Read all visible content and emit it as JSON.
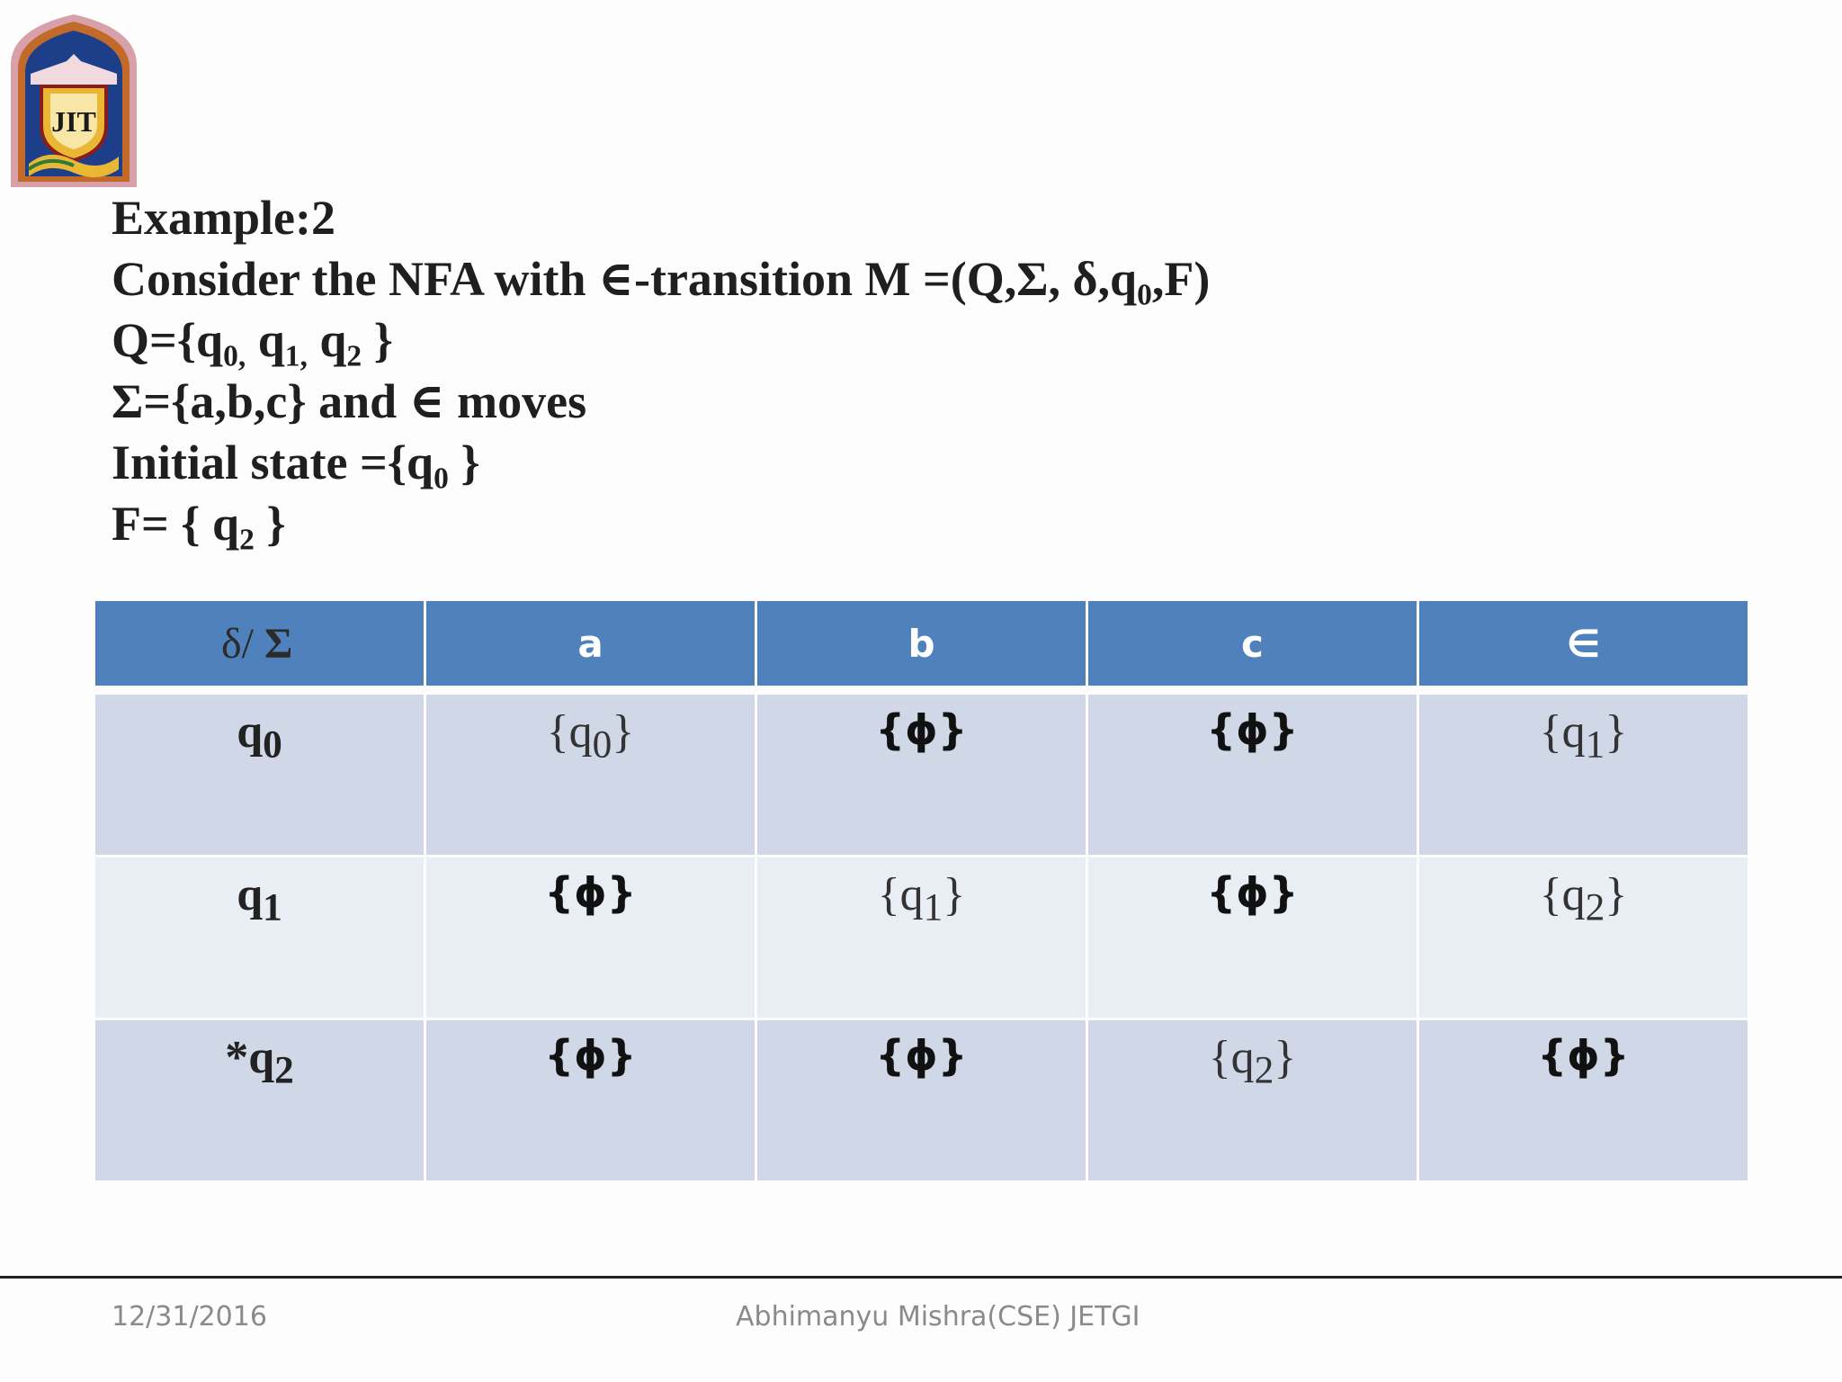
{
  "slide": {
    "logo_text": "JIT",
    "lines": {
      "l1": "Example:2",
      "l2_pre": "Consider the NFA with ∈-transition M =(Q,Σ, δ,q",
      "l2_sub": "0",
      "l2_post": ",F)",
      "l3_a": "Q={q",
      "l3_a_sub": "0,",
      "l3_b": " q",
      "l3_b_sub": "1,",
      "l3_c": " q",
      "l3_c_sub": "2",
      "l3_d": " }",
      "l4": "Σ={a,b,c} and ∈ moves",
      "l5_pre": "Initial state ={q",
      "l5_sub": "0",
      "l5_post": " }",
      "l6_pre": "F= { q",
      "l6_sub": "2",
      "l6_post": "  }"
    },
    "table": {
      "corner_delta": "δ/ ",
      "corner_sigma": "Σ",
      "headers": [
        "a",
        "b",
        "c",
        "∈"
      ],
      "rows": [
        {
          "state_pre": "q",
          "state_sub": "0",
          "cells": [
            {
              "type": "set",
              "pre": "{q",
              "sub": "0",
              "post": "}"
            },
            {
              "type": "phi",
              "text": "{ϕ}"
            },
            {
              "type": "phi",
              "text": "{ϕ}"
            },
            {
              "type": "set",
              "pre": "{q",
              "sub": "1",
              "post": "}"
            }
          ]
        },
        {
          "state_pre": "q",
          "state_sub": "1",
          "cells": [
            {
              "type": "phi",
              "text": "{ϕ}"
            },
            {
              "type": "set",
              "pre": "{q",
              "sub": "1",
              "post": "}"
            },
            {
              "type": "phi",
              "text": "{ϕ}"
            },
            {
              "type": "set",
              "pre": "{q",
              "sub": "2",
              "post": "}"
            }
          ]
        },
        {
          "state_pre": "*q",
          "state_sub": "2",
          "cells": [
            {
              "type": "phi",
              "text": "{ϕ}"
            },
            {
              "type": "phi",
              "text": "{ϕ}"
            },
            {
              "type": "set",
              "pre": "{q",
              "sub": "2",
              "post": "}"
            },
            {
              "type": "phi",
              "text": "{ϕ}"
            }
          ]
        }
      ]
    },
    "footer": {
      "date": "12/31/2016",
      "author": "Abhimanyu Mishra(CSE) JETGI"
    }
  }
}
